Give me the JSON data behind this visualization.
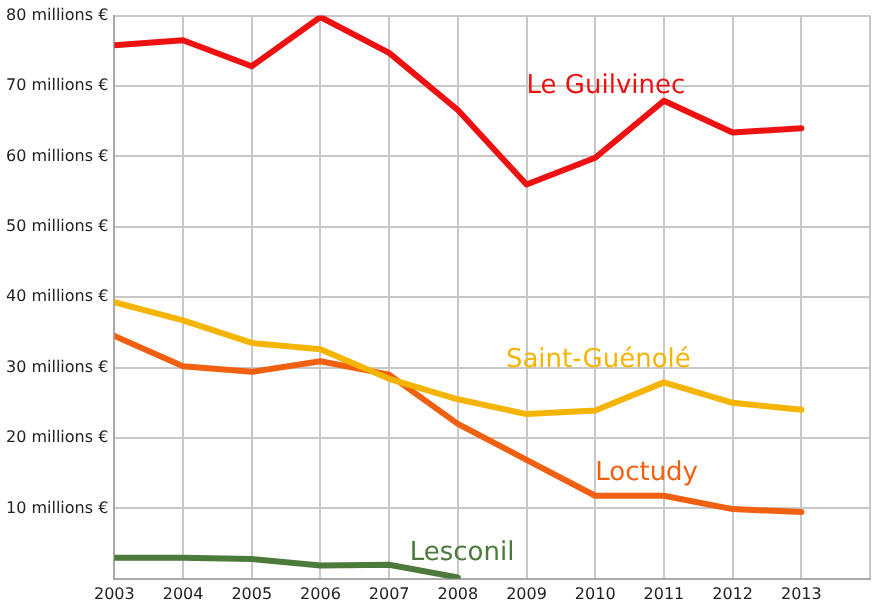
{
  "chart_data": {
    "type": "line",
    "x": [
      2003,
      2004,
      2005,
      2006,
      2007,
      2008,
      2009,
      2010,
      2011,
      2012,
      2013
    ],
    "xlim": [
      2003,
      2014
    ],
    "xticks": [
      2003,
      2004,
      2005,
      2006,
      2007,
      2008,
      2009,
      2010,
      2011,
      2012,
      2013,
      {
        "value": 2014,
        "label": null
      }
    ],
    "ylim": [
      0,
      80
    ],
    "yticks": [
      {
        "value": 0,
        "label": null
      },
      {
        "value": 10,
        "label": "10 millions €"
      },
      {
        "value": 20,
        "label": "20 millions €"
      },
      {
        "value": 30,
        "label": "30 millions €"
      },
      {
        "value": 40,
        "label": "40 millions €"
      },
      {
        "value": 50,
        "label": "50 millions €"
      },
      {
        "value": 60,
        "label": "60 millions €"
      },
      {
        "value": 70,
        "label": "70 millions €"
      },
      {
        "value": 80,
        "label": "80 millions €"
      }
    ],
    "grid": true,
    "legend": false,
    "marker": "none",
    "line_style": "solid",
    "series": [
      {
        "name": "Le Guilvinec",
        "color": "#ee1111",
        "values": [
          75.8,
          76.5,
          72.8,
          79.8,
          74.7,
          66.6,
          56,
          59.8,
          67.9,
          63.4,
          64
        ]
      },
      {
        "name": "Saint-Guénolé",
        "color": "#f5b400",
        "values": [
          39.3,
          36.7,
          33.5,
          32.6,
          28.4,
          25.5,
          23.4,
          23.9,
          27.9,
          25,
          24
        ]
      },
      {
        "name": "Loctudy",
        "color": "#f06010",
        "values": [
          34.5,
          30.2,
          29.4,
          30.9,
          29,
          22,
          16.9,
          11.8,
          11.8,
          9.9,
          9.5
        ]
      },
      {
        "name": "Lesconil",
        "color": "#4c7a3a",
        "values": [
          3,
          3,
          2.8,
          1.9,
          2,
          0.2,
          null,
          null,
          null,
          null,
          null
        ]
      }
    ]
  }
}
